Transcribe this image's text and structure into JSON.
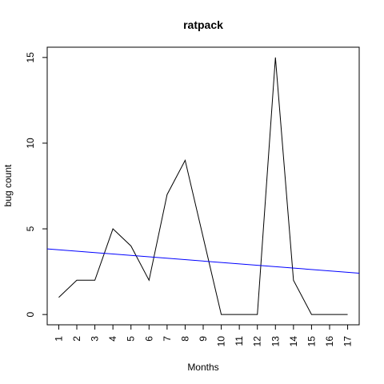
{
  "chart_data": {
    "type": "line",
    "title": "ratpack",
    "xlabel": "Months",
    "ylabel": "bug count",
    "x": [
      1,
      2,
      3,
      4,
      5,
      6,
      7,
      8,
      9,
      10,
      11,
      12,
      13,
      14,
      15,
      16,
      17
    ],
    "x_tick_labels": [
      "1",
      "2",
      "3",
      "4",
      "5",
      "6",
      "7",
      "8",
      "9",
      "10",
      "11",
      "12",
      "13",
      "14",
      "15",
      "16",
      "17"
    ],
    "y_ticks": [
      0,
      5,
      10,
      15
    ],
    "y_tick_labels": [
      "0",
      "5",
      "10",
      "15"
    ],
    "xlim": [
      0.36,
      17.64
    ],
    "ylim": [
      -0.6,
      15.6
    ],
    "grid": false,
    "series": [
      {
        "values": [
          1,
          2,
          2,
          5,
          4,
          2,
          7,
          9,
          4.5,
          0,
          0,
          0,
          15,
          2,
          0,
          0,
          0
        ],
        "color": "#000000"
      }
    ],
    "trend_line": {
      "color": "#0000ff",
      "y_at_xlim_start": 3.83,
      "y_at_xlim_end": 2.41
    }
  }
}
